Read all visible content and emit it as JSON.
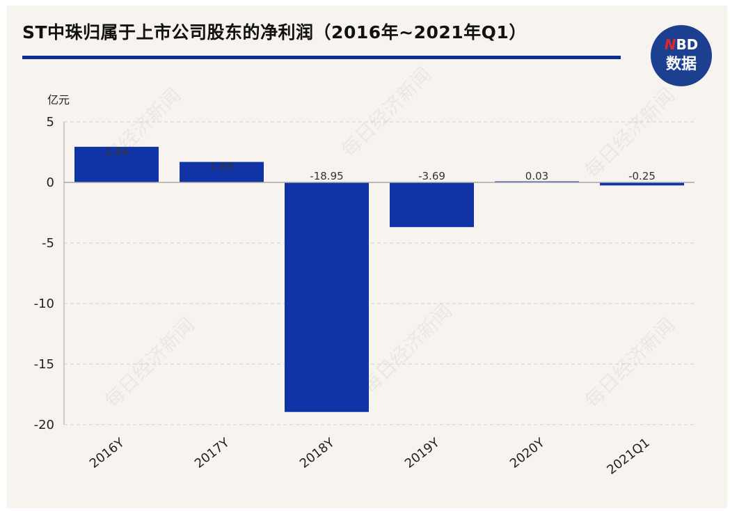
{
  "title": "ST中珠归属于上市公司股东的净利润（2016年~2021年Q1）",
  "logo": {
    "line1_highlight": "N",
    "line1_rest": "BD",
    "line2": "数据"
  },
  "watermark": "每日经济新闻",
  "colors": {
    "bar": "#1034a6",
    "title_rule": "#0b2f8f",
    "logo_bg": "#1d3f8f",
    "background": "#f7f4ef"
  },
  "chart_data": {
    "type": "bar",
    "title": "ST中珠归属于上市公司股东的净利润（2016年~2021年Q1）",
    "ylabel": "亿元",
    "xlabel": "",
    "categories": [
      "2016Y",
      "2017Y",
      "2018Y",
      "2019Y",
      "2020Y",
      "2021Q1"
    ],
    "values": [
      2.94,
      1.69,
      -18.95,
      -3.69,
      0.03,
      -0.25
    ],
    "value_labels": [
      "2.94",
      "1.69",
      "-18.95",
      "-3.69",
      "0.03",
      "-0.25"
    ],
    "ylim": [
      -20,
      5
    ],
    "yticks": [
      5,
      0,
      -5,
      -10,
      -15,
      -20
    ],
    "grid": true,
    "legend": "none"
  }
}
